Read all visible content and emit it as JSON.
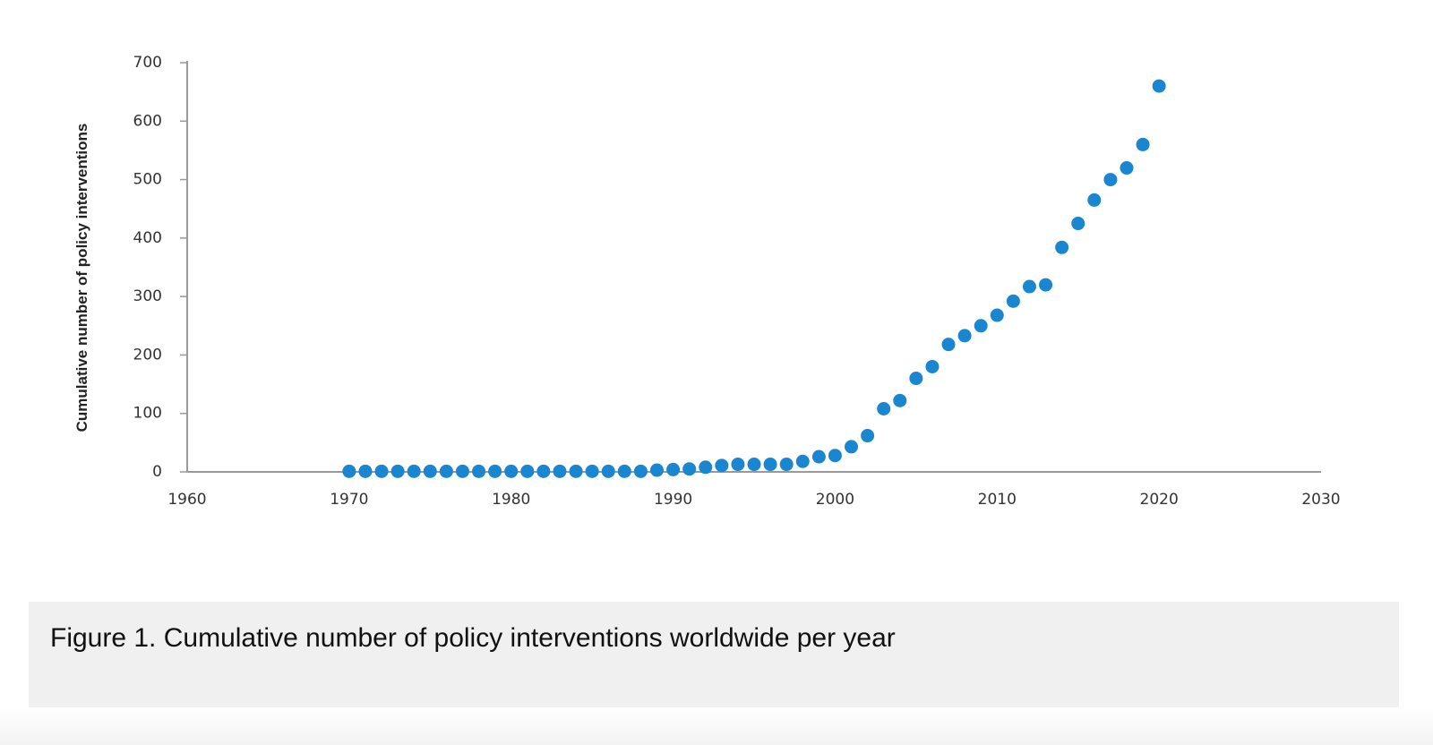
{
  "chart_data": {
    "type": "scatter",
    "title": "",
    "xlabel": "",
    "ylabel": "Cumulative number of policy interventions",
    "xlim": [
      1960,
      2030
    ],
    "ylim": [
      0,
      700
    ],
    "x_ticks": [
      "1960",
      "1970",
      "1980",
      "1990",
      "2000",
      "2010",
      "2020",
      "2030"
    ],
    "y_ticks": [
      "0",
      "100",
      "200",
      "300",
      "400",
      "500",
      "600",
      "700"
    ],
    "grid": false,
    "marker_color": "#1a86cf",
    "series": [
      {
        "x": [
          1970,
          1971,
          1972,
          1973,
          1974,
          1975,
          1976,
          1977,
          1978,
          1979,
          1980,
          1981,
          1982,
          1983,
          1984,
          1985,
          1986,
          1987,
          1988,
          1989,
          1990,
          1991,
          1992,
          1993,
          1994,
          1995,
          1996,
          1997,
          1998,
          1999,
          2000,
          2001,
          2002,
          2003,
          2004,
          2005,
          2006,
          2007,
          2008,
          2009,
          2010,
          2011,
          2012,
          2013,
          2014,
          2015,
          2016,
          2017,
          2018,
          2019,
          2020
        ],
        "y": [
          1,
          1,
          1,
          1,
          1,
          1,
          1,
          1,
          1,
          1,
          1,
          1,
          1,
          1,
          1,
          1,
          1,
          1,
          1,
          3,
          4,
          5,
          8,
          11,
          13,
          13,
          13,
          13,
          18,
          26,
          28,
          43,
          62,
          108,
          122,
          160,
          180,
          218,
          233,
          250,
          268,
          292,
          317,
          320,
          384,
          425,
          465,
          500,
          520,
          560,
          660
        ]
      }
    ]
  },
  "caption": "Figure 1. Cumulative number of policy interventions worldwide per year"
}
